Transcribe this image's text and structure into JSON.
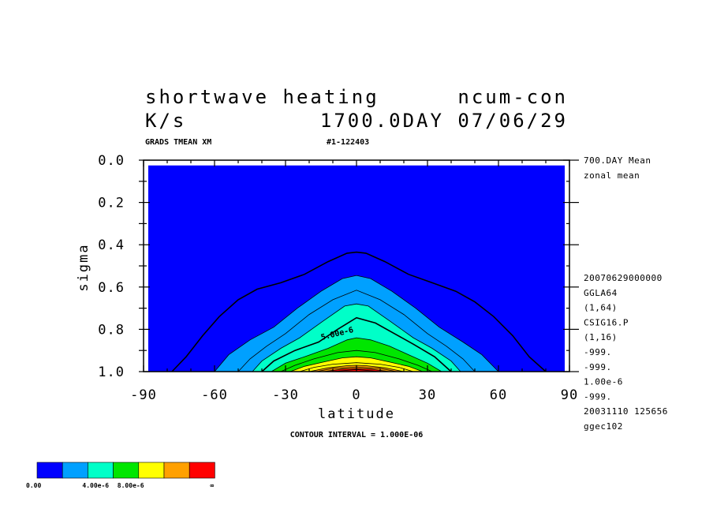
{
  "header": {
    "title_left": "shortwave heating",
    "title_right": "ncum-con",
    "units": "K/s",
    "time_label": "1700.0DAY 07/06/29",
    "sub_left": "GRADS TMEAN XM",
    "sub_right": "#1-122403"
  },
  "side_top": [
    "700.DAY Mean",
    "zonal mean"
  ],
  "side_bottom": [
    "20070629000000",
    "GGLA64",
    "(1,64)",
    "CSIG16.P",
    "(1,16)",
    "-999.",
    "-999.",
    "1.00e-6",
    "-999.",
    "20031110 125656",
    "ggec102"
  ],
  "footer": {
    "contour_interval": "CONTOUR INTERVAL = 1.000E-06"
  },
  "chart_data": {
    "type": "contour",
    "xlabel": "latitude",
    "ylabel": "sigma",
    "x_ticks": [
      "-90",
      "-60",
      "-30",
      "0",
      "30",
      "60",
      "90"
    ],
    "y_ticks": [
      "0.0",
      "0.2",
      "0.4",
      "0.6",
      "0.8",
      "1.0"
    ],
    "xlim": [
      -90,
      90
    ],
    "ylim": [
      0.0,
      1.0
    ],
    "contour_interval": 1e-06,
    "contour_label": "5.00e-6",
    "contours": [
      {
        "level": 1e-06,
        "points": [
          [
            -78,
            1.0
          ],
          [
            -72,
            0.93
          ],
          [
            -65,
            0.83
          ],
          [
            -58,
            0.74
          ],
          [
            -50,
            0.66
          ],
          [
            -42,
            0.61
          ],
          [
            -32,
            0.58
          ],
          [
            -22,
            0.54
          ],
          [
            -12,
            0.48
          ],
          [
            -4,
            0.44
          ],
          [
            0,
            0.435
          ],
          [
            4,
            0.44
          ],
          [
            12,
            0.48
          ],
          [
            22,
            0.54
          ],
          [
            32,
            0.58
          ],
          [
            42,
            0.62
          ],
          [
            50,
            0.67
          ],
          [
            58,
            0.74
          ],
          [
            66,
            0.83
          ],
          [
            73,
            0.93
          ],
          [
            80,
            1.0
          ]
        ]
      },
      {
        "level": 2e-06,
        "points": [
          [
            -60,
            1.0
          ],
          [
            -54,
            0.92
          ],
          [
            -45,
            0.85
          ],
          [
            -35,
            0.79
          ],
          [
            -25,
            0.7
          ],
          [
            -15,
            0.62
          ],
          [
            -6,
            0.56
          ],
          [
            0,
            0.545
          ],
          [
            6,
            0.56
          ],
          [
            15,
            0.62
          ],
          [
            25,
            0.7
          ],
          [
            35,
            0.79
          ],
          [
            45,
            0.86
          ],
          [
            53,
            0.92
          ],
          [
            60,
            1.0
          ]
        ]
      },
      {
        "level": 3e-06,
        "points": [
          [
            -50,
            1.0
          ],
          [
            -45,
            0.94
          ],
          [
            -38,
            0.88
          ],
          [
            -30,
            0.82
          ],
          [
            -20,
            0.73
          ],
          [
            -10,
            0.66
          ],
          [
            0,
            0.615
          ],
          [
            10,
            0.66
          ],
          [
            20,
            0.73
          ],
          [
            30,
            0.82
          ],
          [
            38,
            0.88
          ],
          [
            45,
            0.94
          ],
          [
            50,
            1.0
          ]
        ]
      },
      {
        "level": 4e-06,
        "points": [
          [
            -44,
            1.0
          ],
          [
            -40,
            0.95
          ],
          [
            -32,
            0.89
          ],
          [
            -24,
            0.84
          ],
          [
            -14,
            0.76
          ],
          [
            -5,
            0.69
          ],
          [
            0,
            0.68
          ],
          [
            5,
            0.69
          ],
          [
            14,
            0.76
          ],
          [
            24,
            0.84
          ],
          [
            32,
            0.89
          ],
          [
            40,
            0.95
          ],
          [
            44,
            1.0
          ]
        ]
      },
      {
        "level": 5e-06,
        "points": [
          [
            -40,
            1.0
          ],
          [
            -35,
            0.95
          ],
          [
            -26,
            0.9
          ],
          [
            -16,
            0.86
          ],
          [
            -8,
            0.8
          ],
          [
            0,
            0.745
          ],
          [
            8,
            0.77
          ],
          [
            16,
            0.82
          ],
          [
            24,
            0.87
          ],
          [
            33,
            0.93
          ],
          [
            40,
            1.0
          ]
        ]
      },
      {
        "level": 6e-06,
        "points": [
          [
            -36,
            1.0
          ],
          [
            -30,
            0.96
          ],
          [
            -22,
            0.93
          ],
          [
            -12,
            0.89
          ],
          [
            -4,
            0.85
          ],
          [
            0,
            0.84
          ],
          [
            6,
            0.85
          ],
          [
            14,
            0.88
          ],
          [
            22,
            0.92
          ],
          [
            30,
            0.96
          ],
          [
            36,
            1.0
          ]
        ]
      },
      {
        "level": 7e-06,
        "points": [
          [
            -32,
            1.0
          ],
          [
            -26,
            0.97
          ],
          [
            -18,
            0.94
          ],
          [
            -8,
            0.91
          ],
          [
            0,
            0.9
          ],
          [
            8,
            0.91
          ],
          [
            18,
            0.94
          ],
          [
            26,
            0.97
          ],
          [
            32,
            1.0
          ]
        ]
      },
      {
        "level": 8e-06,
        "points": [
          [
            -28,
            1.0
          ],
          [
            -22,
            0.975
          ],
          [
            -14,
            0.955
          ],
          [
            -6,
            0.935
          ],
          [
            0,
            0.93
          ],
          [
            6,
            0.935
          ],
          [
            14,
            0.955
          ],
          [
            22,
            0.975
          ],
          [
            28,
            1.0
          ]
        ]
      },
      {
        "level": 9e-06,
        "points": [
          [
            -24,
            1.0
          ],
          [
            -18,
            0.98
          ],
          [
            -10,
            0.965
          ],
          [
            0,
            0.958
          ],
          [
            10,
            0.965
          ],
          [
            18,
            0.98
          ],
          [
            24,
            1.0
          ]
        ]
      },
      {
        "level": 1e-05,
        "points": [
          [
            -20,
            1.0
          ],
          [
            -12,
            0.982
          ],
          [
            -4,
            0.972
          ],
          [
            0,
            0.97
          ],
          [
            4,
            0.972
          ],
          [
            12,
            0.982
          ],
          [
            20,
            1.0
          ]
        ]
      },
      {
        "level": 1.1e-05,
        "points": [
          [
            -17,
            1.0
          ],
          [
            -10,
            0.985
          ],
          [
            0,
            0.978
          ],
          [
            10,
            0.985
          ],
          [
            17,
            1.0
          ]
        ]
      },
      {
        "level": 1.2e-05,
        "points": [
          [
            -14,
            1.0
          ],
          [
            -6,
            0.988
          ],
          [
            0,
            0.985
          ],
          [
            6,
            0.988
          ],
          [
            14,
            1.0
          ]
        ]
      },
      {
        "level": 1.3e-05,
        "points": [
          [
            -10,
            1.0
          ],
          [
            0,
            0.99
          ],
          [
            10,
            1.0
          ]
        ]
      }
    ],
    "fill_colors": [
      "#0000ff",
      "#00a0ff",
      "#00ffc8",
      "#00e600",
      "#ffff00",
      "#ffa000",
      "#ff0000"
    ],
    "fill_levels": [
      0,
      2e-06,
      4e-06,
      6e-06,
      8e-06,
      1e-05,
      1.2e-05
    ]
  },
  "colorbar": {
    "colors": [
      "#0000ff",
      "#00a0ff",
      "#00ffc8",
      "#00e600",
      "#ffff00",
      "#ffa000",
      "#ff0000"
    ],
    "labels": [
      "0.00",
      "4.00e-6",
      "8.00e-6",
      "∞"
    ]
  }
}
